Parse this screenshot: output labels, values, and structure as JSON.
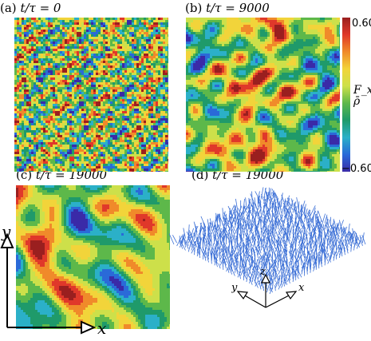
{
  "panels": [
    {
      "label": "(a)",
      "caption": "t/τ = 0"
    },
    {
      "label": "(b)",
      "caption": "t/τ = 9000"
    },
    {
      "label": "(c)",
      "caption": "t/τ = 19000"
    },
    {
      "label": "(d)",
      "caption": "t/τ = 19000"
    }
  ],
  "colorbar": {
    "title": "F_x/ρ̄",
    "max_label": "0.60",
    "min_label": "−0.60",
    "max": 0.6,
    "min": -0.6,
    "colors": [
      "#9a1f1f",
      "#e0382a",
      "#f08a2a",
      "#f2d43a",
      "#cde04a",
      "#5db84a",
      "#1f9a6a",
      "#2bb0c8",
      "#2a6ad8",
      "#3a2aa8"
    ]
  },
  "axes": {
    "x_label": "x",
    "y_label": "y"
  },
  "panel_d_axes": {
    "x_label": "x",
    "y_label": "y",
    "z_label": "z"
  },
  "colors": {
    "vector": "#3b6fd6",
    "axis": "#000000"
  }
}
